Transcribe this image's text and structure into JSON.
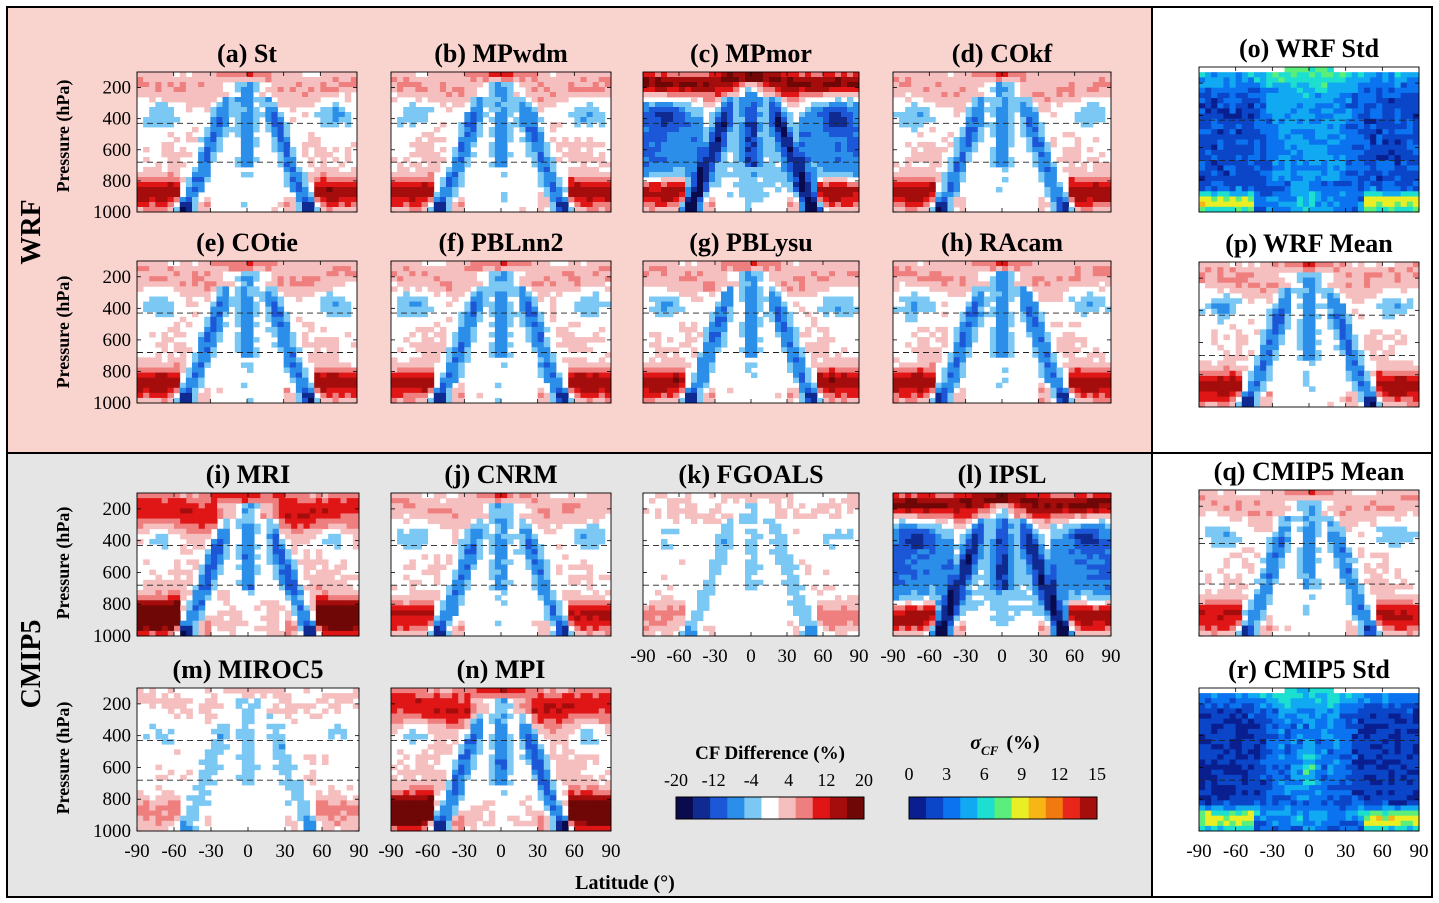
{
  "group_labels": {
    "wrf": "WRF",
    "cmip5": "CMIP5"
  },
  "y_axis_label": "Pressure (hPa)",
  "x_axis_label": "Latitude (°)",
  "y_ticks": [
    "200",
    "400",
    "600",
    "800",
    "1000"
  ],
  "x_ticks": [
    "-90",
    "-60",
    "-30",
    "0",
    "30",
    "60",
    "90"
  ],
  "colors": {
    "wrf_background": "#f9d4cf",
    "cmip5_background": "#e5e5e5",
    "diverging_scale": [
      "#0a0a4f",
      "#0f2b92",
      "#1b57d6",
      "#2b8ee8",
      "#7cc8f5",
      "#ffffff",
      "#f6bfbf",
      "#ef7f7f",
      "#e01616",
      "#a50d0d",
      "#6f0707"
    ],
    "sigma_scale": [
      "#0a1f8f",
      "#0b45c8",
      "#0b73ef",
      "#11aaf2",
      "#1ddfd0",
      "#5bee7a",
      "#e9ef24",
      "#f7b615",
      "#f17a10",
      "#e8271a",
      "#a60d0d"
    ]
  },
  "colorbars": {
    "difference": {
      "title": "CF Difference (%)",
      "ticks": [
        "-20",
        "-12",
        "-4",
        "4",
        "12",
        "20"
      ]
    },
    "sigma": {
      "title_symbol": "σ",
      "title_subscript": "CF",
      "title_unit": "(%)",
      "ticks": [
        "0",
        "3",
        "6",
        "9",
        "12",
        "15"
      ]
    }
  },
  "chart_data": [
    {
      "id": "a",
      "title": "(a) St",
      "type": "heatmap",
      "variable": "cloud fraction difference (%)",
      "scale": "difference",
      "profile": "wrf",
      "seed": 11,
      "xlim": [
        -90,
        90
      ],
      "ylim": [
        1000,
        100
      ],
      "grid": false
    },
    {
      "id": "b",
      "title": "(b) MPwdm",
      "type": "heatmap",
      "variable": "cloud fraction difference (%)",
      "scale": "difference",
      "profile": "wrf",
      "seed": 12,
      "xlim": [
        -90,
        90
      ],
      "ylim": [
        1000,
        100
      ],
      "grid": false
    },
    {
      "id": "c",
      "title": "(c) MPmor",
      "type": "heatmap",
      "variable": "cloud fraction difference (%)",
      "scale": "difference",
      "profile": "strong",
      "seed": 13,
      "xlim": [
        -90,
        90
      ],
      "ylim": [
        1000,
        100
      ],
      "grid": false
    },
    {
      "id": "d",
      "title": "(d) COkf",
      "type": "heatmap",
      "variable": "cloud fraction difference (%)",
      "scale": "difference",
      "profile": "wrf",
      "seed": 14,
      "xlim": [
        -90,
        90
      ],
      "ylim": [
        1000,
        100
      ],
      "grid": false
    },
    {
      "id": "e",
      "title": "(e) COtie",
      "type": "heatmap",
      "variable": "cloud fraction difference (%)",
      "scale": "difference",
      "profile": "wrf",
      "seed": 15,
      "xlim": [
        -90,
        90
      ],
      "ylim": [
        1000,
        100
      ],
      "grid": false
    },
    {
      "id": "f",
      "title": "(f) PBLnn2",
      "type": "heatmap",
      "variable": "cloud fraction difference (%)",
      "scale": "difference",
      "profile": "wrf",
      "seed": 16,
      "xlim": [
        -90,
        90
      ],
      "ylim": [
        1000,
        100
      ],
      "grid": false
    },
    {
      "id": "g",
      "title": "(g) PBLysu",
      "type": "heatmap",
      "variable": "cloud fraction difference (%)",
      "scale": "difference",
      "profile": "wrf",
      "seed": 17,
      "xlim": [
        -90,
        90
      ],
      "ylim": [
        1000,
        100
      ],
      "grid": false
    },
    {
      "id": "h",
      "title": "(h) RAcam",
      "type": "heatmap",
      "variable": "cloud fraction difference (%)",
      "scale": "difference",
      "profile": "wrf",
      "seed": 18,
      "xlim": [
        -90,
        90
      ],
      "ylim": [
        1000,
        100
      ],
      "grid": false
    },
    {
      "id": "i",
      "title": "(i) MRI",
      "type": "heatmap",
      "variable": "cloud fraction difference (%)",
      "scale": "difference",
      "profile": "mri",
      "seed": 21,
      "xlim": [
        -90,
        90
      ],
      "ylim": [
        1000,
        100
      ],
      "grid": false
    },
    {
      "id": "j",
      "title": "(j) CNRM",
      "type": "heatmap",
      "variable": "cloud fraction difference (%)",
      "scale": "difference",
      "profile": "cnrm",
      "seed": 22,
      "xlim": [
        -90,
        90
      ],
      "ylim": [
        1000,
        100
      ],
      "grid": false
    },
    {
      "id": "k",
      "title": "(k) FGOALS",
      "type": "heatmap",
      "variable": "cloud fraction difference (%)",
      "scale": "difference",
      "profile": "weak",
      "seed": 23,
      "xlim": [
        -90,
        90
      ],
      "ylim": [
        1000,
        100
      ],
      "grid": false
    },
    {
      "id": "l",
      "title": "(l) IPSL",
      "type": "heatmap",
      "variable": "cloud fraction difference (%)",
      "scale": "difference",
      "profile": "strong",
      "seed": 24,
      "xlim": [
        -90,
        90
      ],
      "ylim": [
        1000,
        100
      ],
      "grid": false
    },
    {
      "id": "m",
      "title": "(m) MIROC5",
      "type": "heatmap",
      "variable": "cloud fraction difference (%)",
      "scale": "difference",
      "profile": "weak",
      "seed": 25,
      "xlim": [
        -90,
        90
      ],
      "ylim": [
        1000,
        100
      ],
      "grid": false
    },
    {
      "id": "n",
      "title": "(n) MPI",
      "type": "heatmap",
      "variable": "cloud fraction difference (%)",
      "scale": "difference",
      "profile": "mri",
      "seed": 26,
      "xlim": [
        -90,
        90
      ],
      "ylim": [
        1000,
        100
      ],
      "grid": false
    },
    {
      "id": "o",
      "title": "(o) WRF Std",
      "type": "heatmap",
      "variable": "cloud fraction standard deviation (%)",
      "scale": "sigma",
      "profile": "std_wrf",
      "seed": 31,
      "xlim": [
        -90,
        90
      ],
      "ylim": [
        1000,
        100
      ],
      "grid": false
    },
    {
      "id": "p",
      "title": "(p) WRF Mean",
      "type": "heatmap",
      "variable": "cloud fraction difference (%)",
      "scale": "difference",
      "profile": "wrf",
      "seed": 32,
      "xlim": [
        -90,
        90
      ],
      "ylim": [
        1000,
        100
      ],
      "grid": false
    },
    {
      "id": "q",
      "title": "(q) CMIP5 Mean",
      "type": "heatmap",
      "variable": "cloud fraction difference (%)",
      "scale": "difference",
      "profile": "cnrm",
      "seed": 33,
      "xlim": [
        -90,
        90
      ],
      "ylim": [
        1000,
        100
      ],
      "grid": false
    },
    {
      "id": "r",
      "title": "(r) CMIP5 Std",
      "type": "heatmap",
      "variable": "cloud fraction standard deviation (%)",
      "scale": "sigma",
      "profile": "std_cmip",
      "seed": 34,
      "xlim": [
        -90,
        90
      ],
      "ylim": [
        1000,
        100
      ],
      "grid": false
    }
  ]
}
